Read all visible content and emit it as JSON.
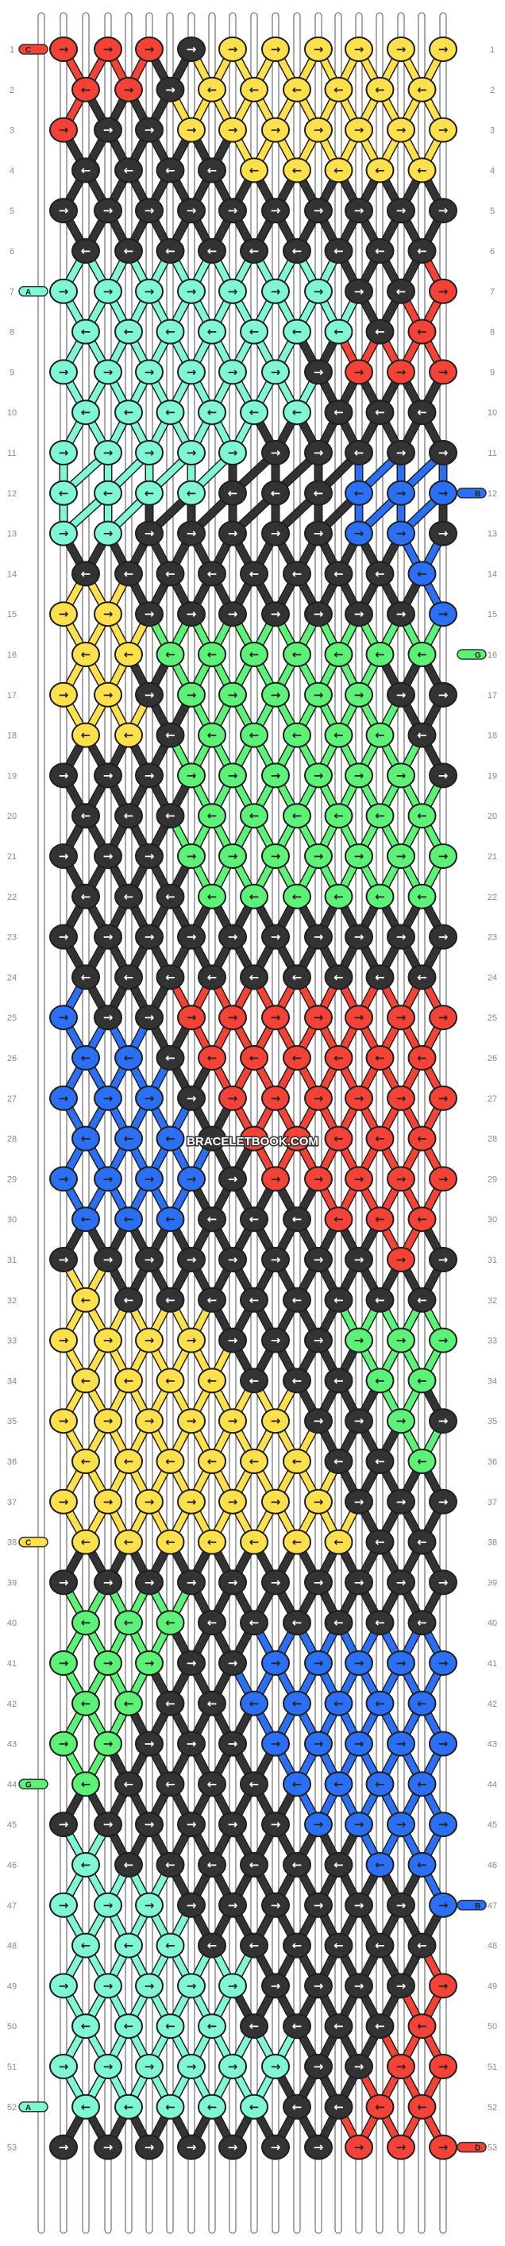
{
  "site": {
    "watermark": "BRACELETBOOK.COM"
  },
  "colors": {
    "R": "#f44336",
    "Y": "#fde04b",
    "K": "#333333",
    "M": "#7ff6d4",
    "B": "#2b6ff5",
    "G": "#5cf277"
  },
  "strand_labels": {
    "left": {
      "1": "C",
      "7": "A",
      "38": "C",
      "44": "G",
      "52": "A"
    },
    "right": {
      "12": "B",
      "16": "G",
      "47": "B",
      "53": "D"
    }
  },
  "arrow_glyphs": {
    "r": "→",
    "l": "←",
    "fr": "↘",
    "fl": "↙"
  },
  "pattern": {
    "columns": 10,
    "rows": [
      {
        "n": 1,
        "colors": "RRRKYYYYYY",
        "dirs": "rrrfrrrrrr"
      },
      {
        "n": 2,
        "colors": "RRKYYYYYY",
        "dirs": "lrrllllll"
      },
      {
        "n": 3,
        "colors": "RKKYYYYYYY",
        "dirs": "rrrrrrrrrr"
      },
      {
        "n": 4,
        "colors": "KKKKYYYYY",
        "dirs": "lllllllll"
      },
      {
        "n": 5,
        "colors": "KKKKKKKKKK",
        "dirs": "rrrrrrrrrr"
      },
      {
        "n": 6,
        "colors": "KKKKKKKKK",
        "dirs": "lllllllll"
      },
      {
        "n": 7,
        "colors": "MMMMMMMKKR",
        "dirs": "rrrrrrrrlr"
      },
      {
        "n": 8,
        "colors": "MMMMMMMKR",
        "dirs": "lllllllll"
      },
      {
        "n": 9,
        "colors": "MMMMMMKRRR",
        "dirs": "rrrrrrrrrr"
      },
      {
        "n": 10,
        "colors": "MMMMMMKKK",
        "dirs": "lllllllll"
      },
      {
        "n": 11,
        "colors": "MMMMMKKKKK",
        "dirs": "rrrrrrrlrr"
      },
      {
        "n": 12,
        "colors": "MMMMKKKBBB",
        "dirs": "llllllllr"
      },
      {
        "n": 13,
        "colors": "MMKKKKKBBK",
        "dirs": "rrrrrrrrrr"
      },
      {
        "n": 14,
        "colors": "KKKKKKKKB",
        "dirs": "lllllllll"
      },
      {
        "n": 15,
        "colors": "YYKKKKKKKB",
        "dirs": "rrrrrrrrrr"
      },
      {
        "n": 16,
        "colors": "YYGGGGGGG",
        "dirs": "lllllllll"
      },
      {
        "n": 17,
        "colors": "YYKGGGGGKK",
        "dirs": "rrrrrrrrrr"
      },
      {
        "n": 18,
        "colors": "YYKGGGGGK",
        "dirs": "lllllllll"
      },
      {
        "n": 19,
        "colors": "KKKGGGGGGK",
        "dirs": "rrrrrrrrrr"
      },
      {
        "n": 20,
        "colors": "KKKGGGGGG",
        "dirs": "lllllllll"
      },
      {
        "n": 21,
        "colors": "KKKGGGGGGG",
        "dirs": "rrrrrrrrrr"
      },
      {
        "n": 22,
        "colors": "KKKGGGGGG",
        "dirs": "lllllllll"
      },
      {
        "n": 23,
        "colors": "KKKKKKKKKK",
        "dirs": "rrrrrrrrrr"
      },
      {
        "n": 24,
        "colors": "KKKKKKKKK",
        "dirs": "lllllllll"
      },
      {
        "n": 25,
        "colors": "BKKRRRRRRR",
        "dirs": "rrrrrrrrrr"
      },
      {
        "n": 26,
        "colors": "BBKRRRRRR",
        "dirs": "lllllllll"
      },
      {
        "n": 27,
        "colors": "BBBKRRRRRR",
        "dirs": "rrrrrrrrrr"
      },
      {
        "n": 28,
        "colors": "BBBKRRRRR",
        "dirs": "lllllllll"
      },
      {
        "n": 29,
        "colors": "BBBBKRRRRR",
        "dirs": "rrrrrrrrrr"
      },
      {
        "n": 30,
        "colors": "BBBKKKRRR",
        "dirs": "lllllllll"
      },
      {
        "n": 31,
        "colors": "KKKKKKKKRK",
        "dirs": "rrrrrrrrrr"
      },
      {
        "n": 32,
        "colors": "YKKKKKKKK",
        "dirs": "lllllllll"
      },
      {
        "n": 33,
        "colors": "YYYYKKKGGG",
        "dirs": "rrrrrrrrrr"
      },
      {
        "n": 34,
        "colors": "YYYYKKKGG",
        "dirs": "lllllllll"
      },
      {
        "n": 35,
        "colors": "YYYYYYKKGK",
        "dirs": "rrrrrrrrrr"
      },
      {
        "n": 36,
        "colors": "YYYYYYKKG",
        "dirs": "lllllllll"
      },
      {
        "n": 37,
        "colors": "YYYYYYYKKK",
        "dirs": "rrrrrrrrrr"
      },
      {
        "n": 38,
        "colors": "YYYYYYYKK",
        "dirs": "lllllllll"
      },
      {
        "n": 39,
        "colors": "KKKKKKKKKK",
        "dirs": "rrrrrrrrrr"
      },
      {
        "n": 40,
        "colors": "GGGKKKKKK",
        "dirs": "lllllllll"
      },
      {
        "n": 41,
        "colors": "GGGKKBBBBB",
        "dirs": "rrrrrrrrrr"
      },
      {
        "n": 42,
        "colors": "GGKKBBBBB",
        "dirs": "lllllllll"
      },
      {
        "n": 43,
        "colors": "GGKKKBBBBB",
        "dirs": "rrrrrrrrrr"
      },
      {
        "n": 44,
        "colors": "GKKKKBBBB",
        "dirs": "lllllllll"
      },
      {
        "n": 45,
        "colors": "KKKKKKBBBB",
        "dirs": "rrrrrrrrrr"
      },
      {
        "n": 46,
        "colors": "MKKKKKKBB",
        "dirs": "lllllllll"
      },
      {
        "n": 47,
        "colors": "MMMKKKKKKB",
        "dirs": "rrrrrrrrrr"
      },
      {
        "n": 48,
        "colors": "MMMKKKKKK",
        "dirs": "lllllllll"
      },
      {
        "n": 49,
        "colors": "MMMMMKKKKR",
        "dirs": "rrrrrrrrrr"
      },
      {
        "n": 50,
        "colors": "MMMMKKKKR",
        "dirs": "lllllllll"
      },
      {
        "n": 51,
        "colors": "MMMMMMKKRR",
        "dirs": "rrrrrrrrrr"
      },
      {
        "n": 52,
        "colors": "MMMMMKKRR",
        "dirs": "lllllllll"
      },
      {
        "n": 53,
        "colors": "KKKKKKKRRR",
        "dirs": "rrrrrrrrrr"
      }
    ]
  }
}
